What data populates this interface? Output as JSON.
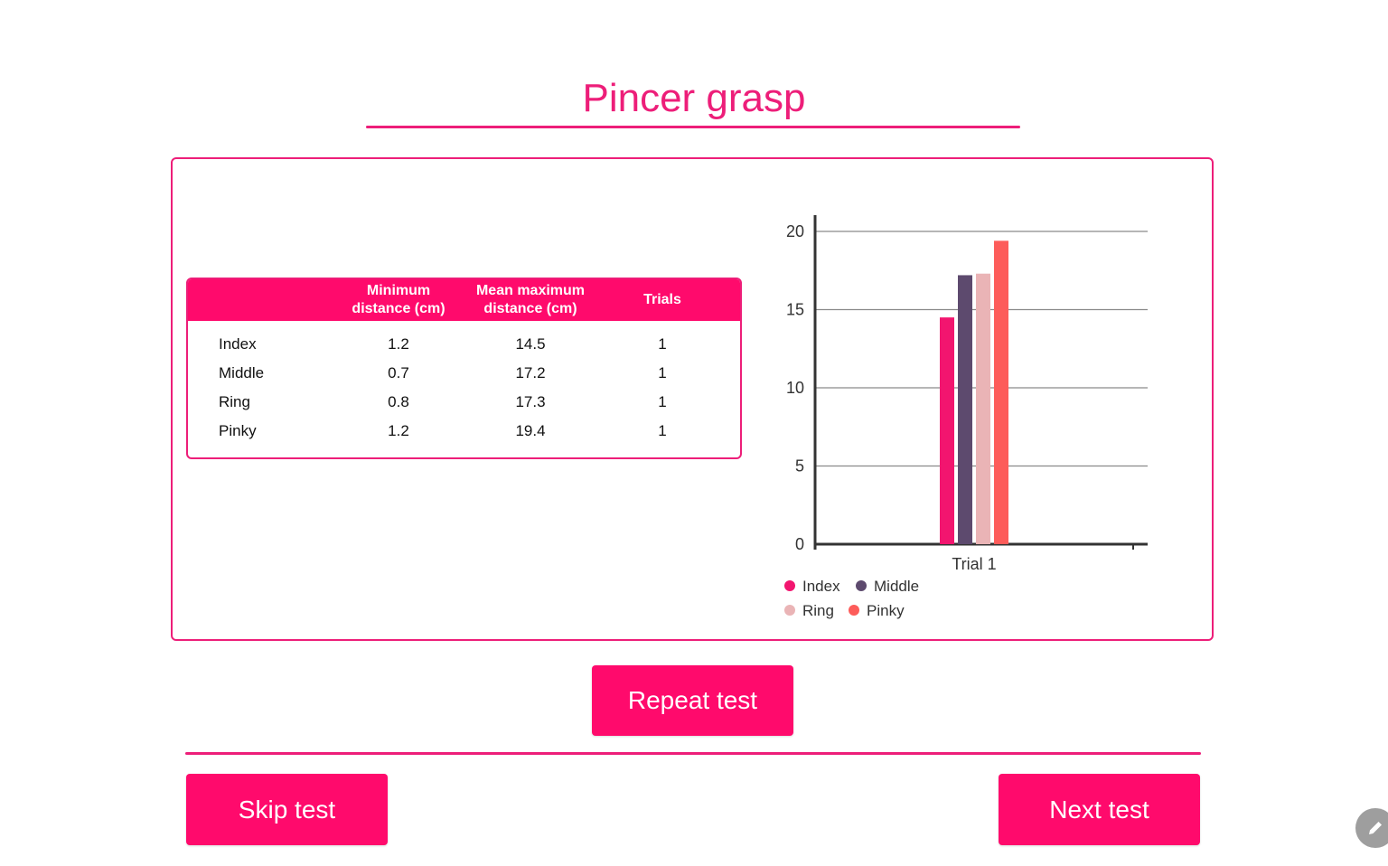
{
  "page": {
    "title": "Pincer grasp"
  },
  "table": {
    "headers": {
      "min_line1": "Minimum",
      "min_line2": "distance (cm)",
      "mean_line1": "Mean maximum",
      "mean_line2": "distance (cm)",
      "trials": "Trials"
    },
    "rows": [
      {
        "finger": "Index",
        "min": "1.2",
        "mean_max": "14.5",
        "trials": "1"
      },
      {
        "finger": "Middle",
        "min": "0.7",
        "mean_max": "17.2",
        "trials": "1"
      },
      {
        "finger": "Ring",
        "min": "0.8",
        "mean_max": "17.3",
        "trials": "1"
      },
      {
        "finger": "Pinky",
        "min": "1.2",
        "mean_max": "19.4",
        "trials": "1"
      }
    ]
  },
  "chart_data": {
    "type": "bar",
    "categories": [
      "Trial 1"
    ],
    "series": [
      {
        "name": "Index",
        "values": [
          14.5
        ],
        "color": "#f2156f"
      },
      {
        "name": "Middle",
        "values": [
          17.2
        ],
        "color": "#5d4a6e"
      },
      {
        "name": "Ring",
        "values": [
          17.3
        ],
        "color": "#eab4b6"
      },
      {
        "name": "Pinky",
        "values": [
          19.4
        ],
        "color": "#fd5c5a"
      }
    ],
    "ylim": [
      0,
      20
    ],
    "yticks": [
      "0",
      "5",
      "10",
      "15",
      "20"
    ],
    "grid": true,
    "legend_position": "bottom",
    "title": "",
    "xlabel": "",
    "ylabel": ""
  },
  "buttons": {
    "repeat": "Repeat test",
    "skip": "Skip test",
    "next": "Next test"
  },
  "icons": {
    "edit": "pencil-icon"
  },
  "colors": {
    "accent": "#ed1e79",
    "button": "#ff0a6c"
  }
}
